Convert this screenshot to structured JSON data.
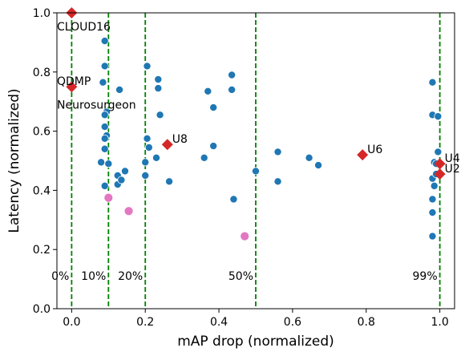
{
  "chart_data": {
    "type": "scatter",
    "title": "",
    "xlabel": "mAP drop (normalized)",
    "ylabel": "Latency (normalized)",
    "xlim": [
      -0.04,
      1.04
    ],
    "ylim": [
      0.0,
      1.0
    ],
    "xticks": [
      0.0,
      0.2,
      0.4,
      0.6,
      0.8,
      1.0
    ],
    "xtick_labels": [
      "0.0",
      "0.2",
      "0.4",
      "0.6",
      "0.8",
      "1.0"
    ],
    "yticks": [
      0.0,
      0.2,
      0.4,
      0.6,
      0.8,
      1.0
    ],
    "ytick_labels": [
      "0.0",
      "0.2",
      "0.4",
      "0.6",
      "0.8",
      "1.0"
    ],
    "grid": false,
    "colors": {
      "blue": "#1f77b4",
      "pink": "#e377c2",
      "red": "#d62728",
      "green": "#008000"
    },
    "vlines": [
      {
        "x": 0.0,
        "label": "0%"
      },
      {
        "x": 0.1,
        "label": "10%"
      },
      {
        "x": 0.2,
        "label": "20%"
      },
      {
        "x": 0.5,
        "label": "50%"
      },
      {
        "x": 1.0,
        "label": "99%"
      }
    ],
    "blue_points": [
      [
        0.09,
        0.905
      ],
      [
        0.09,
        0.82
      ],
      [
        0.085,
        0.765
      ],
      [
        0.095,
        0.665
      ],
      [
        0.09,
        0.655
      ],
      [
        0.09,
        0.615
      ],
      [
        0.095,
        0.585
      ],
      [
        0.09,
        0.575
      ],
      [
        0.09,
        0.54
      ],
      [
        0.08,
        0.495
      ],
      [
        0.1,
        0.49
      ],
      [
        0.09,
        0.415
      ],
      [
        0.125,
        0.45
      ],
      [
        0.125,
        0.42
      ],
      [
        0.135,
        0.435
      ],
      [
        0.145,
        0.465
      ],
      [
        0.13,
        0.74
      ],
      [
        0.2,
        0.495
      ],
      [
        0.2,
        0.45
      ],
      [
        0.205,
        0.575
      ],
      [
        0.21,
        0.545
      ],
      [
        0.205,
        0.82
      ],
      [
        0.235,
        0.775
      ],
      [
        0.235,
        0.745
      ],
      [
        0.24,
        0.655
      ],
      [
        0.23,
        0.51
      ],
      [
        0.265,
        0.43
      ],
      [
        0.36,
        0.51
      ],
      [
        0.37,
        0.735
      ],
      [
        0.385,
        0.68
      ],
      [
        0.385,
        0.55
      ],
      [
        0.435,
        0.79
      ],
      [
        0.435,
        0.74
      ],
      [
        0.44,
        0.37
      ],
      [
        0.5,
        0.465
      ],
      [
        0.56,
        0.53
      ],
      [
        0.56,
        0.43
      ],
      [
        0.645,
        0.51
      ],
      [
        0.67,
        0.485
      ],
      [
        0.98,
        0.765
      ],
      [
        0.98,
        0.655
      ],
      [
        0.995,
        0.65
      ],
      [
        0.995,
        0.53
      ],
      [
        0.985,
        0.495
      ],
      [
        0.99,
        0.49
      ],
      [
        0.98,
        0.44
      ],
      [
        0.985,
        0.415
      ],
      [
        0.98,
        0.37
      ],
      [
        0.98,
        0.325
      ],
      [
        0.98,
        0.245
      ],
      [
        0.99,
        0.455
      ]
    ],
    "pink_points": [
      [
        0.1,
        0.375
      ],
      [
        0.155,
        0.33
      ],
      [
        0.47,
        0.245
      ]
    ],
    "red_points": [
      {
        "x": 0.0,
        "y": 1.0,
        "label": "CLOUD16"
      },
      {
        "x": 0.0,
        "y": 0.75,
        "label": ""
      },
      {
        "x": 0.26,
        "y": 0.555,
        "label": "U8"
      },
      {
        "x": 0.79,
        "y": 0.52,
        "label": "U6"
      },
      {
        "x": 1.0,
        "y": 0.49,
        "label": "U4"
      },
      {
        "x": 1.0,
        "y": 0.455,
        "label": "U2"
      }
    ],
    "annotations": [
      {
        "text": "QDMP",
        "x": -0.04,
        "y": 0.77
      },
      {
        "text": "Neurosurgeon",
        "x": -0.04,
        "y": 0.69
      }
    ]
  }
}
